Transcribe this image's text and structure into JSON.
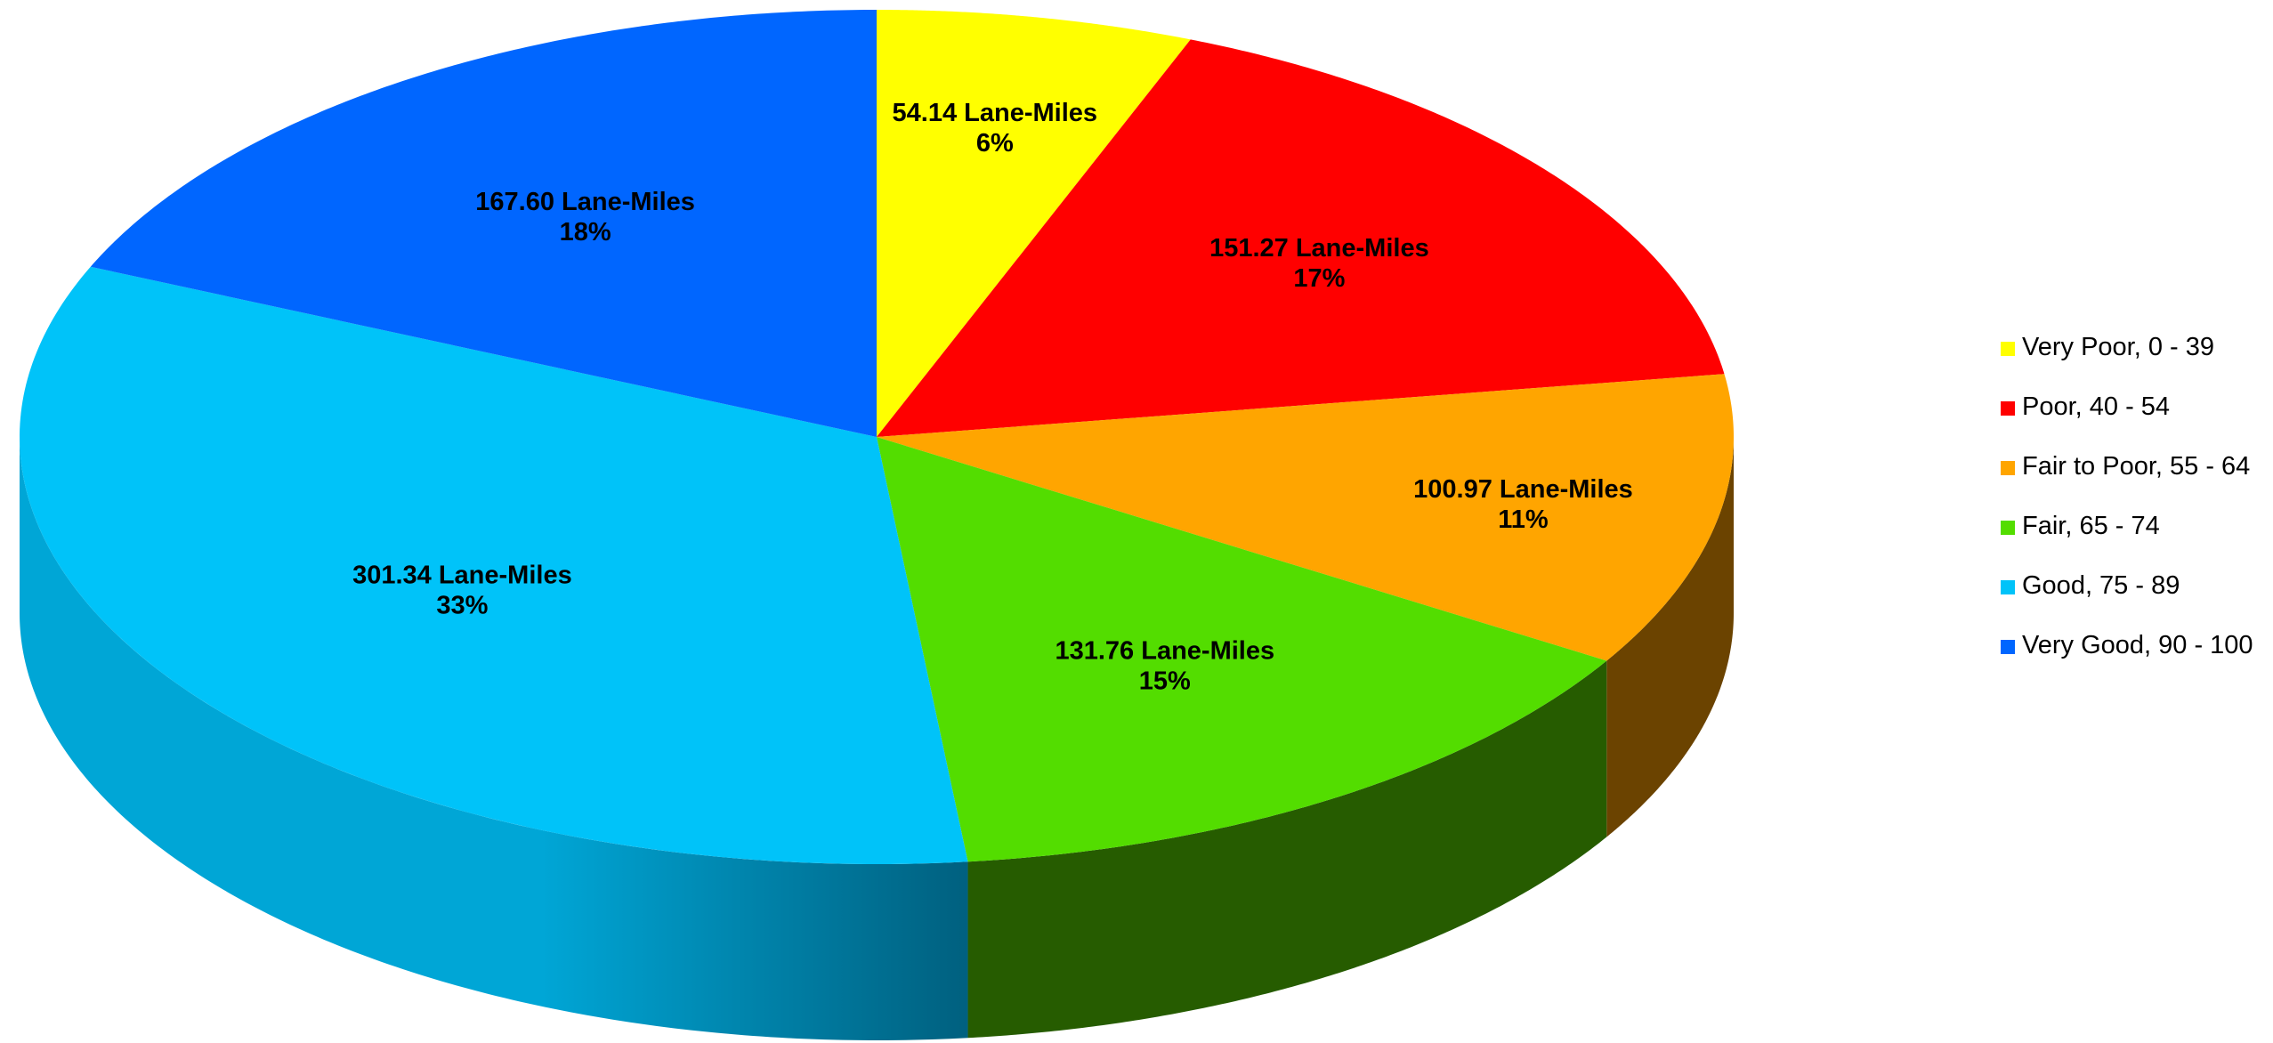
{
  "chart_data": {
    "type": "pie",
    "style": "3d",
    "start_position": "top-center, clockwise",
    "legend_position": "right",
    "slices": [
      {
        "name": "Very Poor, 0 - 39",
        "value": 54.14,
        "value_label": "54.14 Lane-Miles",
        "percent_label": "6%",
        "color": "#FFFF00",
        "side_color": "#8F8F00"
      },
      {
        "name": "Poor, 40 - 54",
        "value": 151.27,
        "value_label": "151.27 Lane-Miles",
        "percent_label": "17%",
        "color": "#FF0000",
        "side_color": "#8A0000"
      },
      {
        "name": "Fair to Poor, 55 - 64",
        "value": 100.97,
        "value_label": "100.97 Lane-Miles",
        "percent_label": "11%",
        "color": "#FFA500",
        "side_color": "#6B4300"
      },
      {
        "name": "Fair, 65 - 74",
        "value": 131.76,
        "value_label": "131.76 Lane-Miles",
        "percent_label": "15%",
        "color": "#53DD00",
        "side_color": "#265C00"
      },
      {
        "name": "Good, 75 - 89",
        "value": 301.34,
        "value_label": "301.34 Lane-Miles",
        "percent_label": "33%",
        "color": "#00C3F9",
        "side_color": "#00A6D6",
        "side_color_dark": "#00607F"
      },
      {
        "name": "Very Good, 90 - 100",
        "value": 167.6,
        "value_label": "167.60 Lane-Miles",
        "percent_label": "18%",
        "color": "#0066FF",
        "side_color": "#0044AA"
      }
    ]
  }
}
